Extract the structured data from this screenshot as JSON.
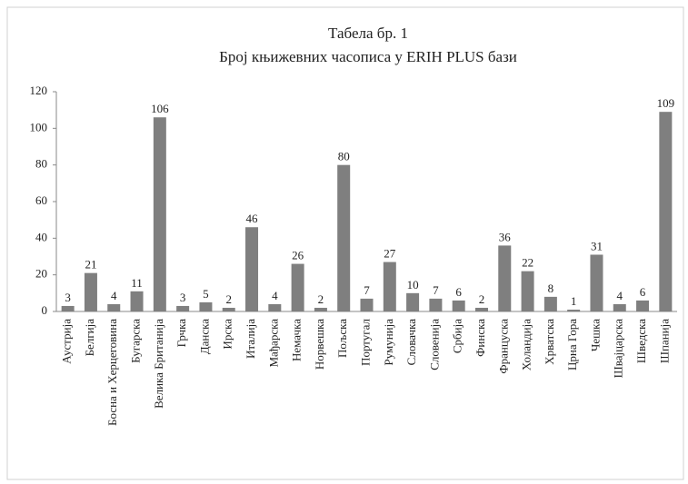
{
  "chart_data": {
    "type": "bar",
    "title": "Табела бр. 1",
    "subtitle": "Број књижевних часописа у ERIH PLUS бази",
    "categories": [
      "Аустрија",
      "Белгија",
      "Босна и Херцеговина",
      "Бугарска",
      "Велика Британија",
      "Грчка",
      "Данска",
      "Ирска",
      "Италија",
      "Мађарска",
      "Немачка",
      "Норвешка",
      "Пољска",
      "Португал",
      "Румунија",
      "Словачка",
      "Словенија",
      "Србија",
      "Финска",
      "Француска",
      "Холандија",
      "Хрватска",
      "Црна Гора",
      "Чешка",
      "Швајцарска",
      "Шведска",
      "Шпанија"
    ],
    "values": [
      3,
      21,
      4,
      11,
      106,
      3,
      5,
      2,
      46,
      4,
      26,
      2,
      80,
      7,
      27,
      10,
      7,
      6,
      2,
      36,
      22,
      8,
      1,
      31,
      4,
      6,
      109
    ],
    "color": "#7f7f7f",
    "ylim": [
      0,
      120
    ],
    "yticks": [
      0,
      20,
      40,
      60,
      80,
      100,
      120
    ],
    "grid": false
  }
}
